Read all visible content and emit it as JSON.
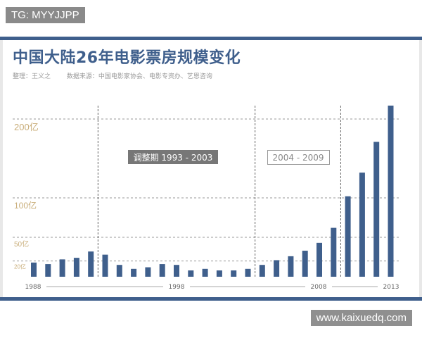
{
  "badge": "TG: MYYJJPP",
  "watermark": "www.kaixuedq.com",
  "title": "中国大陆26年电影票房规模变化",
  "compiler": "整理：王义之",
  "source": "数据来源：中国电影家协会、电影专资办、艺恩咨询",
  "colors": {
    "bar": "#3f5f8c",
    "ytick": "#c9ae7a",
    "frame": "#3f5f8c"
  },
  "chart_data": {
    "type": "bar",
    "title": "中国大陆26年电影票房规模变化",
    "categories": [
      "1988",
      "1989",
      "1990",
      "1991",
      "1992",
      "1993",
      "1994",
      "1995",
      "1996",
      "1997",
      "1998",
      "1999",
      "2000",
      "2001",
      "2002",
      "2003",
      "2004",
      "2005",
      "2006",
      "2007",
      "2008",
      "2009",
      "2010",
      "2011",
      "2012",
      "2013"
    ],
    "values": [
      18,
      16,
      22,
      24,
      32,
      28,
      15,
      10,
      12,
      16,
      15,
      8,
      10,
      8,
      8,
      10,
      15,
      21,
      26,
      33,
      43,
      62,
      102,
      132,
      171,
      217
    ],
    "ylim": [
      0,
      220
    ],
    "y_gridlines": [
      20,
      50,
      100,
      200
    ],
    "y_tick_labels": [
      "20亿",
      "50亿",
      "100亿",
      "200亿"
    ],
    "x_tick_labels": [
      "1988",
      "1998",
      "2008",
      "2013"
    ],
    "period_dividers": [
      "1992/1993",
      "2003/2004",
      "2009/2010"
    ],
    "annotations": [
      "调整期 1993 - 2003",
      "2004 - 2009"
    ],
    "grid": true
  }
}
